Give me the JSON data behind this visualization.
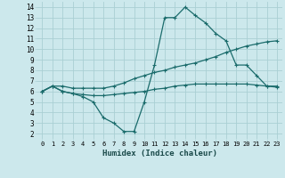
{
  "xlabel": "Humidex (Indice chaleur)",
  "background_color": "#cce8ec",
  "grid_color": "#aacfd4",
  "line_color": "#1a6b6b",
  "xlim": [
    -0.5,
    23.5
  ],
  "ylim": [
    1.5,
    14.5
  ],
  "xticks": [
    0,
    1,
    2,
    3,
    4,
    5,
    6,
    7,
    8,
    9,
    10,
    11,
    12,
    13,
    14,
    15,
    16,
    17,
    18,
    19,
    20,
    21,
    22,
    23
  ],
  "yticks": [
    2,
    3,
    4,
    5,
    6,
    7,
    8,
    9,
    10,
    11,
    12,
    13,
    14
  ],
  "line1_x": [
    0,
    1,
    2,
    3,
    4,
    5,
    6,
    7,
    8,
    9,
    10,
    11,
    12,
    13,
    14,
    15,
    16,
    17,
    18,
    19,
    20,
    21,
    22,
    23
  ],
  "line1_y": [
    6.0,
    6.5,
    6.0,
    5.8,
    5.5,
    5.0,
    3.5,
    3.0,
    2.2,
    2.2,
    5.0,
    8.5,
    13.0,
    13.0,
    14.0,
    13.2,
    12.5,
    11.5,
    10.8,
    8.5,
    8.5,
    7.5,
    6.5,
    6.5
  ],
  "line2_x": [
    0,
    1,
    2,
    3,
    4,
    5,
    6,
    7,
    8,
    9,
    10,
    11,
    12,
    13,
    14,
    15,
    16,
    17,
    18,
    19,
    20,
    21,
    22,
    23
  ],
  "line2_y": [
    6.0,
    6.5,
    6.5,
    6.3,
    6.3,
    6.3,
    6.3,
    6.5,
    6.8,
    7.2,
    7.5,
    7.8,
    8.0,
    8.3,
    8.5,
    8.7,
    9.0,
    9.3,
    9.7,
    10.0,
    10.3,
    10.5,
    10.7,
    10.8
  ],
  "line3_x": [
    0,
    1,
    2,
    3,
    4,
    5,
    6,
    7,
    8,
    9,
    10,
    11,
    12,
    13,
    14,
    15,
    16,
    17,
    18,
    19,
    20,
    21,
    22,
    23
  ],
  "line3_y": [
    6.0,
    6.5,
    6.0,
    5.8,
    5.7,
    5.6,
    5.6,
    5.7,
    5.8,
    5.9,
    6.0,
    6.2,
    6.3,
    6.5,
    6.6,
    6.7,
    6.7,
    6.7,
    6.7,
    6.7,
    6.7,
    6.6,
    6.5,
    6.4
  ]
}
